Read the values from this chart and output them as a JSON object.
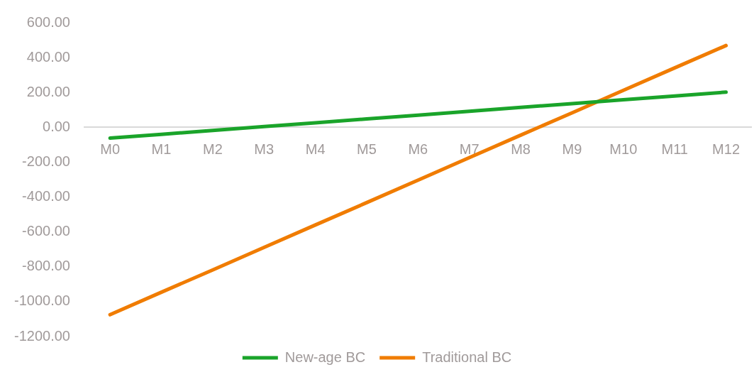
{
  "chart_data": {
    "type": "line",
    "categories": [
      "M0",
      "M1",
      "M2",
      "M3",
      "M4",
      "M5",
      "M6",
      "M7",
      "M8",
      "M9",
      "M10",
      "M11",
      "M12"
    ],
    "series": [
      {
        "name": "New-age BC",
        "color": "#1aa42a",
        "values": [
          -62,
          -40,
          -18,
          4,
          26,
          48,
          70,
          92,
          114,
          136,
          158,
          180,
          202
        ]
      },
      {
        "name": "Traditional BC",
        "color": "#f07c00",
        "values": [
          -1075,
          -946,
          -818,
          -689,
          -560,
          -432,
          -303,
          -174,
          -45,
          83,
          212,
          341,
          469
        ]
      }
    ],
    "ylim": [
      -1200,
      600
    ],
    "yticks": [
      {
        "value": -1200,
        "label": "-1200.00"
      },
      {
        "value": -1000,
        "label": "-1000.00"
      },
      {
        "value": -800,
        "label": "-800.00"
      },
      {
        "value": -600,
        "label": "-600.00"
      },
      {
        "value": -400,
        "label": "-400.00"
      },
      {
        "value": -200,
        "label": "-200.00"
      },
      {
        "value": 0,
        "label": "0.00"
      },
      {
        "value": 200,
        "label": "200.00"
      },
      {
        "value": 400,
        "label": "400.00"
      },
      {
        "value": 600,
        "label": "600.00"
      }
    ],
    "legend": "bottom",
    "marker": "none"
  }
}
